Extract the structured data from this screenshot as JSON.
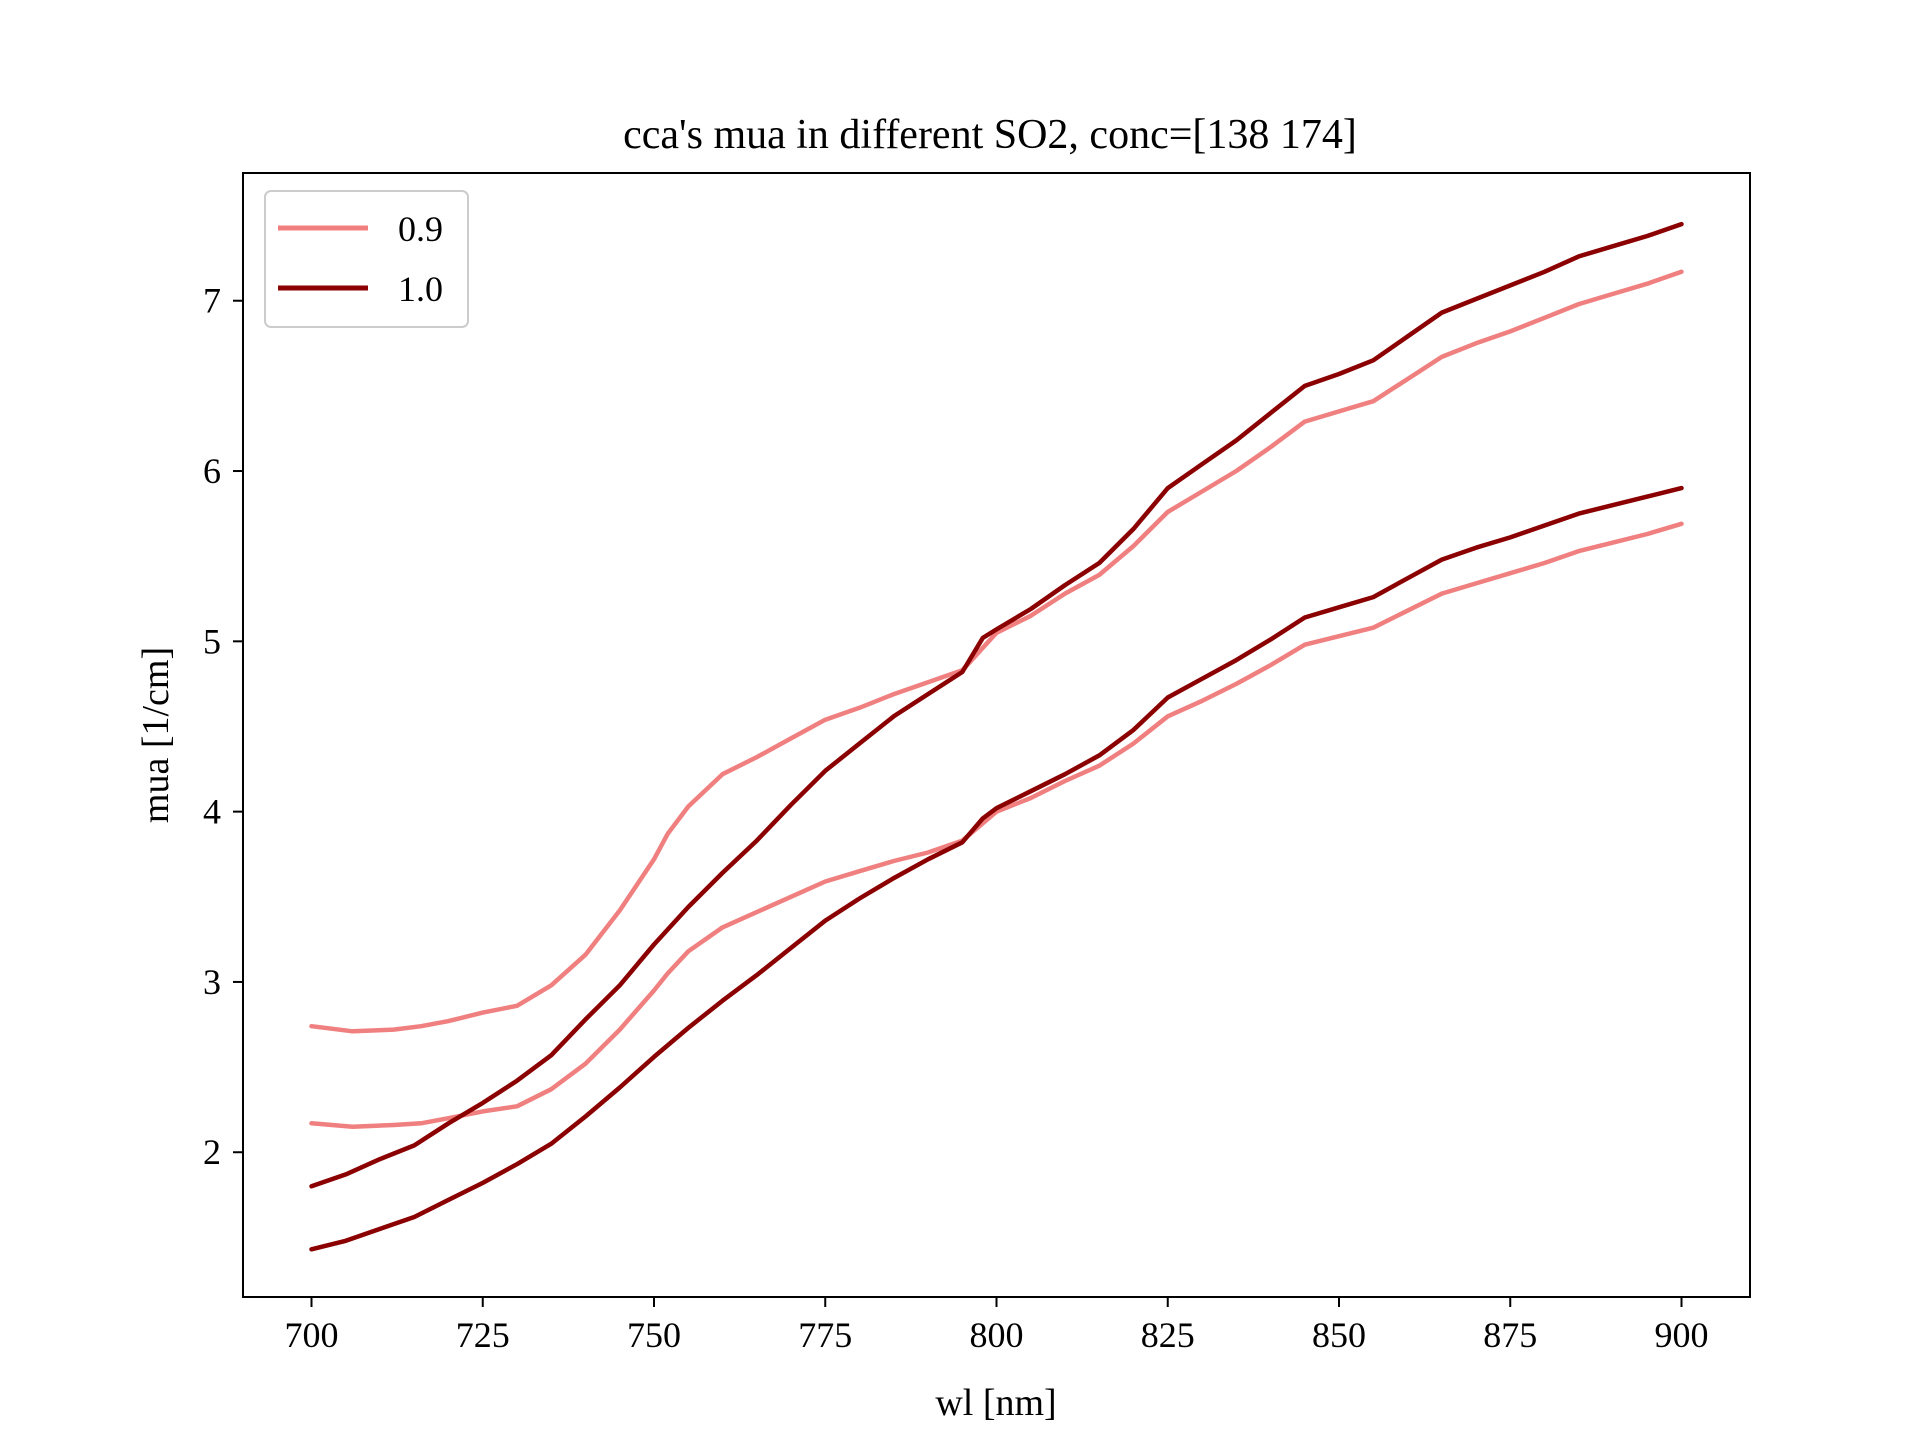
{
  "chart_data": {
    "type": "line",
    "title": "cca's mua in different SO2, conc=[138 174]",
    "xlabel": "wl [nm]",
    "ylabel": "mua [1/cm]",
    "xlim": [
      690,
      910
    ],
    "ylim": [
      1.15,
      7.75
    ],
    "xticks": [
      700,
      725,
      750,
      775,
      800,
      825,
      850,
      875,
      900
    ],
    "yticks": [
      2,
      3,
      4,
      5,
      6,
      7
    ],
    "grid": false,
    "legend": {
      "placement": "top-left"
    },
    "series": [
      {
        "name": "0.9",
        "color": "#f08080",
        "lines": [
          [
            [
              700,
              2.17
            ],
            [
              706,
              2.15
            ],
            [
              712,
              2.16
            ],
            [
              716,
              2.17
            ],
            [
              720,
              2.2
            ],
            [
              725,
              2.24
            ],
            [
              730,
              2.27
            ],
            [
              735,
              2.37
            ],
            [
              740,
              2.52
            ],
            [
              745,
              2.72
            ],
            [
              750,
              2.95
            ],
            [
              752,
              3.05
            ],
            [
              755,
              3.18
            ],
            [
              760,
              3.32
            ],
            [
              765,
              3.41
            ],
            [
              770,
              3.5
            ],
            [
              775,
              3.59
            ],
            [
              780,
              3.65
            ],
            [
              785,
              3.71
            ],
            [
              790,
              3.76
            ],
            [
              795,
              3.83
            ],
            [
              800,
              4.0
            ],
            [
              805,
              4.08
            ],
            [
              810,
              4.18
            ],
            [
              815,
              4.27
            ],
            [
              820,
              4.4
            ],
            [
              825,
              4.56
            ],
            [
              830,
              4.65
            ],
            [
              835,
              4.75
            ],
            [
              840,
              4.86
            ],
            [
              845,
              4.98
            ],
            [
              850,
              5.03
            ],
            [
              855,
              5.08
            ],
            [
              860,
              5.18
            ],
            [
              865,
              5.28
            ],
            [
              870,
              5.34
            ],
            [
              875,
              5.4
            ],
            [
              880,
              5.46
            ],
            [
              885,
              5.53
            ],
            [
              890,
              5.58
            ],
            [
              895,
              5.63
            ],
            [
              900,
              5.69
            ]
          ],
          [
            [
              700,
              2.74
            ],
            [
              706,
              2.71
            ],
            [
              712,
              2.72
            ],
            [
              716,
              2.74
            ],
            [
              720,
              2.77
            ],
            [
              725,
              2.82
            ],
            [
              730,
              2.86
            ],
            [
              735,
              2.98
            ],
            [
              740,
              3.16
            ],
            [
              745,
              3.42
            ],
            [
              750,
              3.72
            ],
            [
              752,
              3.87
            ],
            [
              755,
              4.03
            ],
            [
              760,
              4.22
            ],
            [
              765,
              4.32
            ],
            [
              770,
              4.43
            ],
            [
              775,
              4.54
            ],
            [
              780,
              4.61
            ],
            [
              785,
              4.69
            ],
            [
              790,
              4.76
            ],
            [
              795,
              4.83
            ],
            [
              800,
              5.05
            ],
            [
              805,
              5.15
            ],
            [
              810,
              5.28
            ],
            [
              815,
              5.39
            ],
            [
              820,
              5.56
            ],
            [
              825,
              5.76
            ],
            [
              830,
              5.88
            ],
            [
              835,
              6.0
            ],
            [
              840,
              6.14
            ],
            [
              845,
              6.29
            ],
            [
              850,
              6.35
            ],
            [
              855,
              6.41
            ],
            [
              860,
              6.54
            ],
            [
              865,
              6.67
            ],
            [
              870,
              6.75
            ],
            [
              875,
              6.82
            ],
            [
              880,
              6.9
            ],
            [
              885,
              6.98
            ],
            [
              890,
              7.04
            ],
            [
              895,
              7.1
            ],
            [
              900,
              7.17
            ]
          ]
        ]
      },
      {
        "name": "1.0",
        "color": "#8b0000",
        "lines": [
          [
            [
              700,
              1.43
            ],
            [
              705,
              1.48
            ],
            [
              710,
              1.55
            ],
            [
              715,
              1.62
            ],
            [
              720,
              1.72
            ],
            [
              725,
              1.82
            ],
            [
              730,
              1.93
            ],
            [
              735,
              2.05
            ],
            [
              740,
              2.21
            ],
            [
              745,
              2.38
            ],
            [
              750,
              2.56
            ],
            [
              755,
              2.73
            ],
            [
              760,
              2.89
            ],
            [
              765,
              3.04
            ],
            [
              770,
              3.2
            ],
            [
              775,
              3.36
            ],
            [
              780,
              3.49
            ],
            [
              785,
              3.61
            ],
            [
              790,
              3.72
            ],
            [
              795,
              3.82
            ],
            [
              798,
              3.96
            ],
            [
              800,
              4.02
            ],
            [
              805,
              4.12
            ],
            [
              810,
              4.22
            ],
            [
              815,
              4.33
            ],
            [
              820,
              4.48
            ],
            [
              825,
              4.67
            ],
            [
              830,
              4.78
            ],
            [
              835,
              4.89
            ],
            [
              840,
              5.01
            ],
            [
              845,
              5.14
            ],
            [
              850,
              5.2
            ],
            [
              855,
              5.26
            ],
            [
              860,
              5.37
            ],
            [
              865,
              5.48
            ],
            [
              870,
              5.55
            ],
            [
              875,
              5.61
            ],
            [
              880,
              5.68
            ],
            [
              885,
              5.75
            ],
            [
              890,
              5.8
            ],
            [
              895,
              5.85
            ],
            [
              900,
              5.9
            ]
          ],
          [
            [
              700,
              1.8
            ],
            [
              705,
              1.87
            ],
            [
              710,
              1.96
            ],
            [
              715,
              2.04
            ],
            [
              720,
              2.17
            ],
            [
              725,
              2.29
            ],
            [
              730,
              2.42
            ],
            [
              735,
              2.57
            ],
            [
              740,
              2.78
            ],
            [
              745,
              2.98
            ],
            [
              750,
              3.22
            ],
            [
              755,
              3.44
            ],
            [
              760,
              3.64
            ],
            [
              765,
              3.83
            ],
            [
              770,
              4.04
            ],
            [
              775,
              4.24
            ],
            [
              780,
              4.4
            ],
            [
              785,
              4.56
            ],
            [
              790,
              4.69
            ],
            [
              795,
              4.82
            ],
            [
              798,
              5.02
            ],
            [
              800,
              5.07
            ],
            [
              805,
              5.19
            ],
            [
              810,
              5.33
            ],
            [
              815,
              5.46
            ],
            [
              820,
              5.66
            ],
            [
              825,
              5.9
            ],
            [
              830,
              6.04
            ],
            [
              835,
              6.18
            ],
            [
              840,
              6.34
            ],
            [
              845,
              6.5
            ],
            [
              850,
              6.57
            ],
            [
              855,
              6.65
            ],
            [
              860,
              6.79
            ],
            [
              865,
              6.93
            ],
            [
              870,
              7.01
            ],
            [
              875,
              7.09
            ],
            [
              880,
              7.17
            ],
            [
              885,
              7.26
            ],
            [
              890,
              7.32
            ],
            [
              895,
              7.38
            ],
            [
              900,
              7.45
            ]
          ]
        ]
      }
    ]
  }
}
